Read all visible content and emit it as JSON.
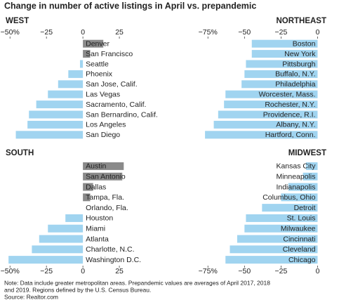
{
  "title": "Change in number of active listings in April vs. prepandemic",
  "note": "Note: Data include greater metropolitan areas. Prepandemic values are averages of April 2017, 2018",
  "note_2": "and 2019. Regions defined by the U.S. Census Bureau.",
  "source": "Source: Realtor.com",
  "chart_data": [
    {
      "type": "bar",
      "orientation": "horizontal",
      "title": "WEST",
      "xaxis_position": "top",
      "color": "#a0d4f0",
      "positive_color": "#8a8a8a",
      "categories": [
        "Denver",
        "San Francisco",
        "Seattle",
        "Phoenix",
        "San Jose, Calif.",
        "Las Vegas",
        "Sacramento, Calif.",
        "San Bernardino, Calif.",
        "Los Angeles",
        "San Diego"
      ],
      "values": [
        14,
        5,
        -2,
        -10,
        -17,
        -24,
        -32,
        -37,
        -38,
        -46
      ],
      "xlim": [
        -53,
        37
      ],
      "xticks": [
        {
          "value": -50,
          "label": "−50%"
        },
        {
          "value": -25,
          "label": "−25"
        },
        0,
        25
      ]
    },
    {
      "type": "bar",
      "orientation": "horizontal",
      "title": "NORTHEAST",
      "xaxis_position": "top",
      "color": "#a0d4f0",
      "positive_color": "#8a8a8a",
      "categories": [
        "Boston",
        "New York",
        "Pittsburgh",
        "Buffalo, N.Y.",
        "Philadelphia",
        "Worcester, Mass.",
        "Rochester, N.Y.",
        "Providence, R.I.",
        "Albany, N.Y.",
        "Hartford, Conn."
      ],
      "values": [
        -45,
        -45,
        -49,
        -50,
        -52,
        -63,
        -64,
        -68,
        -71,
        -77
      ],
      "xlim": [
        -78,
        6
      ],
      "xticks": [
        {
          "value": -75,
          "label": "−75%"
        },
        {
          "value": -50,
          "label": "−50"
        },
        {
          "value": -25,
          "label": "−25"
        },
        0
      ]
    },
    {
      "type": "bar",
      "orientation": "horizontal",
      "title": "SOUTH",
      "xaxis_position": "bottom",
      "color": "#a0d4f0",
      "positive_color": "#8a8a8a",
      "categories": [
        "Austin",
        "San Antonio",
        "Dallas",
        "Tampa, Fla.",
        "Orlando, Fla.",
        "Houston",
        "Miami",
        "Atlanta",
        "Charlotte, N.C.",
        "Washington D.C."
      ],
      "values": [
        28,
        27,
        7,
        5,
        0,
        -12,
        -24,
        -30,
        -35,
        -51
      ],
      "xlim": [
        -53,
        37
      ],
      "xticks": [
        {
          "value": -50,
          "label": "−50%"
        },
        {
          "value": -25,
          "label": "−25"
        },
        0,
        25
      ]
    },
    {
      "type": "bar",
      "orientation": "horizontal",
      "title": "MIDWEST",
      "xaxis_position": "bottom",
      "color": "#a0d4f0",
      "positive_color": "#8a8a8a",
      "categories": [
        "Kansas City",
        "Minneapolis",
        "Indianapolis",
        "Columbus, Ohio",
        "Detroit",
        "St. Louis",
        "Milwaukee",
        "Cincinnati",
        "Cleveland",
        "Chicago"
      ],
      "values": [
        -8,
        -10,
        -20,
        -25,
        -38,
        -49,
        -50,
        -55,
        -60,
        -63
      ],
      "xlim": [
        -78,
        6
      ],
      "xticks": [
        {
          "value": -75,
          "label": "−75%"
        },
        {
          "value": -50,
          "label": "−50"
        },
        {
          "value": -25,
          "label": "−25"
        },
        0
      ]
    }
  ]
}
